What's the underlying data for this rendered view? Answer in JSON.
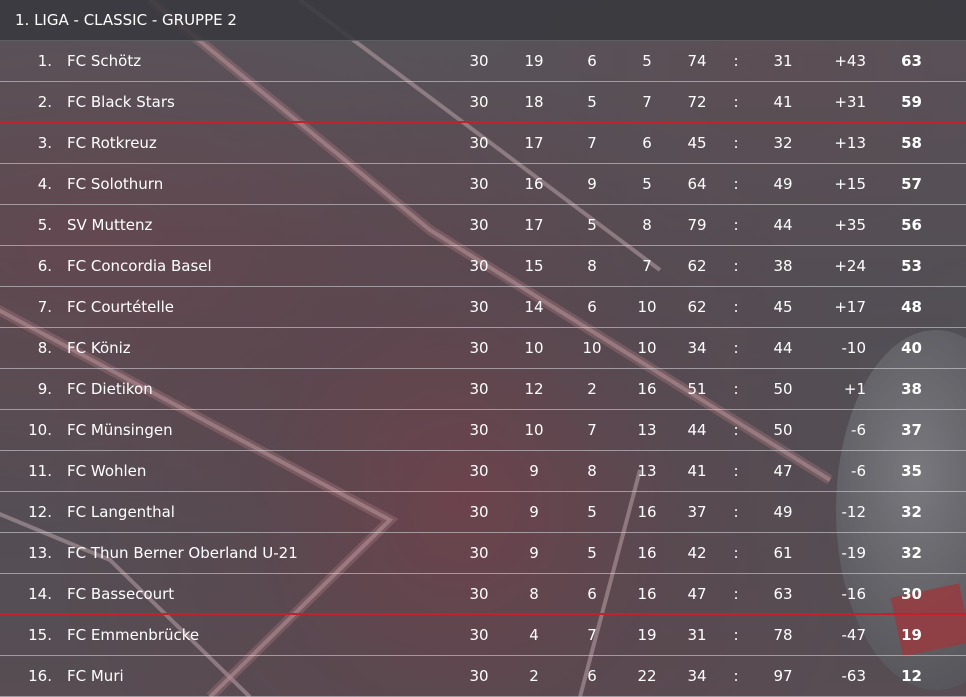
{
  "title": "1. LIGA - CLASSIC - GRUPPE 2",
  "colors": {
    "promotion_line": "#c3212b",
    "relegation_line": "#c3212b"
  },
  "rows": [
    {
      "rank": "1.",
      "team": "FC Schötz",
      "played": "30",
      "wins": "19",
      "draws": "6",
      "losses": "5",
      "goals_for": "74",
      "goals_against": "31",
      "goal_diff": "+43",
      "points": "63"
    },
    {
      "rank": "2.",
      "team": "FC Black Stars",
      "played": "30",
      "wins": "18",
      "draws": "5",
      "losses": "7",
      "goals_for": "72",
      "goals_against": "41",
      "goal_diff": "+31",
      "points": "59"
    },
    {
      "rank": "3.",
      "team": "FC Rotkreuz",
      "played": "30",
      "wins": "17",
      "draws": "7",
      "losses": "6",
      "goals_for": "45",
      "goals_against": "32",
      "goal_diff": "+13",
      "points": "58"
    },
    {
      "rank": "4.",
      "team": "FC Solothurn",
      "played": "30",
      "wins": "16",
      "draws": "9",
      "losses": "5",
      "goals_for": "64",
      "goals_against": "49",
      "goal_diff": "+15",
      "points": "57"
    },
    {
      "rank": "5.",
      "team": "SV Muttenz",
      "played": "30",
      "wins": "17",
      "draws": "5",
      "losses": "8",
      "goals_for": "79",
      "goals_against": "44",
      "goal_diff": "+35",
      "points": "56"
    },
    {
      "rank": "6.",
      "team": "FC Concordia Basel",
      "played": "30",
      "wins": "15",
      "draws": "8",
      "losses": "7",
      "goals_for": "62",
      "goals_against": "38",
      "goal_diff": "+24",
      "points": "53"
    },
    {
      "rank": "7.",
      "team": "FC Courtételle",
      "played": "30",
      "wins": "14",
      "draws": "6",
      "losses": "10",
      "goals_for": "62",
      "goals_against": "45",
      "goal_diff": "+17",
      "points": "48"
    },
    {
      "rank": "8.",
      "team": "FC Köniz",
      "played": "30",
      "wins": "10",
      "draws": "10",
      "losses": "10",
      "goals_for": "34",
      "goals_against": "44",
      "goal_diff": "-10",
      "points": "40"
    },
    {
      "rank": "9.",
      "team": "FC Dietikon",
      "played": "30",
      "wins": "12",
      "draws": "2",
      "losses": "16",
      "goals_for": "51",
      "goals_against": "50",
      "goal_diff": "+1",
      "points": "38"
    },
    {
      "rank": "10.",
      "team": "FC Münsingen",
      "played": "30",
      "wins": "10",
      "draws": "7",
      "losses": "13",
      "goals_for": "44",
      "goals_against": "50",
      "goal_diff": "-6",
      "points": "37"
    },
    {
      "rank": "11.",
      "team": "FC Wohlen",
      "played": "30",
      "wins": "9",
      "draws": "8",
      "losses": "13",
      "goals_for": "41",
      "goals_against": "47",
      "goal_diff": "-6",
      "points": "35"
    },
    {
      "rank": "12.",
      "team": "FC Langenthal",
      "played": "30",
      "wins": "9",
      "draws": "5",
      "losses": "16",
      "goals_for": "37",
      "goals_against": "49",
      "goal_diff": "-12",
      "points": "32"
    },
    {
      "rank": "13.",
      "team": "FC Thun Berner Oberland U-21",
      "played": "30",
      "wins": "9",
      "draws": "5",
      "losses": "16",
      "goals_for": "42",
      "goals_against": "61",
      "goal_diff": "-19",
      "points": "32"
    },
    {
      "rank": "14.",
      "team": "FC Bassecourt",
      "played": "30",
      "wins": "8",
      "draws": "6",
      "losses": "16",
      "goals_for": "47",
      "goals_against": "63",
      "goal_diff": "-16",
      "points": "30"
    },
    {
      "rank": "15.",
      "team": "FC Emmenbrücke",
      "played": "30",
      "wins": "4",
      "draws": "7",
      "losses": "19",
      "goals_for": "31",
      "goals_against": "78",
      "goal_diff": "-47",
      "points": "19"
    },
    {
      "rank": "16.",
      "team": "FC Muri",
      "played": "30",
      "wins": "2",
      "draws": "6",
      "losses": "22",
      "goals_for": "34",
      "goals_against": "97",
      "goal_diff": "-63",
      "points": "12"
    }
  ]
}
